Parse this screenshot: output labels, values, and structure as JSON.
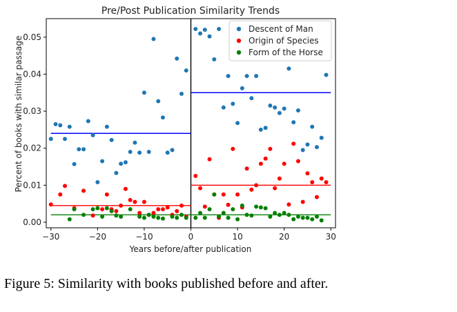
{
  "caption": "Figure 5: Similarity with books published before and after.",
  "chart_data": {
    "type": "scatter",
    "title": "Pre/Post Publication Similarity Trends",
    "xlabel": "Years before/after publication",
    "ylabel": "Percent of books with similar passage",
    "xlim": [
      -31,
      31
    ],
    "ylim": [
      -0.0015,
      0.055
    ],
    "xticks": [
      -30,
      -20,
      -10,
      0,
      10,
      20,
      30
    ],
    "xtick_labels": [
      "−30",
      "−20",
      "−10",
      "0",
      "10",
      "20",
      "30"
    ],
    "yticks": [
      0.0,
      0.01,
      0.02,
      0.03,
      0.04,
      0.05
    ],
    "ytick_labels": [
      "0.00",
      "0.01",
      "0.02",
      "0.03",
      "0.04",
      "0.05"
    ],
    "grid": false,
    "legend_position": "top-right",
    "vline_x": 0,
    "series": [
      {
        "name": "Descent of Man",
        "color": "#1f77b4",
        "x": [
          -30,
          -29,
          -28,
          -27,
          -26,
          -25,
          -24,
          -23,
          -22,
          -21,
          -20,
          -19,
          -18,
          -17,
          -16,
          -15,
          -14,
          -13,
          -12,
          -11,
          -10,
          -9,
          -8,
          -7,
          -6,
          -5,
          -4,
          -3,
          -2,
          -1,
          1,
          2,
          3,
          4,
          5,
          6,
          7,
          8,
          9,
          10,
          11,
          12,
          13,
          14,
          15,
          16,
          17,
          18,
          19,
          20,
          21,
          22,
          23,
          24,
          25,
          26,
          27,
          28,
          29
        ],
        "y": [
          0.0225,
          0.0265,
          0.0262,
          0.0225,
          0.0258,
          0.0157,
          0.0197,
          0.0197,
          0.0273,
          0.0235,
          0.0108,
          0.0165,
          0.0258,
          0.0222,
          0.0133,
          0.0158,
          0.0162,
          0.019,
          0.0215,
          0.0188,
          0.035,
          0.019,
          0.0495,
          0.0327,
          0.0283,
          0.0188,
          0.0195,
          0.0442,
          0.0347,
          0.041,
          0.0522,
          0.051,
          0.052,
          0.0502,
          0.044,
          0.0522,
          0.031,
          0.0395,
          0.032,
          0.0268,
          0.0362,
          0.0395,
          0.0335,
          0.0395,
          0.025,
          0.0255,
          0.0315,
          0.031,
          0.0295,
          0.0307,
          0.0415,
          0.027,
          0.0302,
          0.0195,
          0.021,
          0.0258,
          0.0203,
          0.0228,
          0.0398
        ],
        "trend": {
          "from": -30,
          "to": 0,
          "value": 0.024,
          "color": "#0000ff"
        },
        "trend_post": {
          "from": 0,
          "to": 30,
          "value": 0.035,
          "color": "#0000ff"
        }
      },
      {
        "name": "Origin of Species",
        "color": "#ff0000",
        "x": [
          -30,
          -28,
          -27,
          -25,
          -23,
          -21,
          -19,
          -18,
          -17,
          -16,
          -15,
          -14,
          -13,
          -12,
          -11,
          -10,
          -9,
          -8,
          -7,
          -6,
          -5,
          -4,
          -3,
          -2,
          -1,
          1,
          2,
          3,
          4,
          5,
          6,
          7,
          8,
          9,
          10,
          11,
          12,
          13,
          14,
          15,
          16,
          17,
          18,
          19,
          20,
          21,
          22,
          23,
          24,
          25,
          26,
          27,
          28,
          29
        ],
        "y": [
          0.0048,
          0.0075,
          0.0098,
          0.0038,
          0.0085,
          0.0018,
          0.0035,
          0.0075,
          0.0035,
          0.003,
          0.0045,
          0.009,
          0.006,
          0.0055,
          0.0025,
          0.0055,
          0.002,
          0.0025,
          0.0035,
          0.0035,
          0.004,
          0.002,
          0.003,
          0.0045,
          0.0015,
          0.0125,
          0.0092,
          0.0042,
          0.017,
          0.0075,
          0.0012,
          0.0075,
          0.0047,
          0.0198,
          0.0075,
          0.004,
          0.0145,
          0.0088,
          0.01,
          0.0158,
          0.0172,
          0.0198,
          0.0092,
          0.0118,
          0.0158,
          0.0048,
          0.0212,
          0.0165,
          0.0055,
          0.0132,
          0.0108,
          0.0068,
          0.0118,
          0.0108
        ],
        "trend": {
          "from": -30,
          "to": 0,
          "value": 0.0045,
          "color": "#ff0000"
        },
        "trend_post": {
          "from": 0,
          "to": 30,
          "value": 0.01,
          "color": "#ff0000"
        }
      },
      {
        "name": "Form of the Horse",
        "color": "#008000",
        "x": [
          -26,
          -25,
          -23,
          -21,
          -20,
          -19,
          -18,
          -17,
          -16,
          -15,
          -13,
          -11,
          -10,
          -9,
          -8,
          -7,
          -6,
          -4,
          -3,
          -2,
          -1,
          1,
          2,
          3,
          4,
          5,
          6,
          7,
          8,
          9,
          10,
          11,
          12,
          13,
          14,
          15,
          16,
          17,
          18,
          19,
          20,
          21,
          22,
          23,
          24,
          25,
          26,
          27,
          28
        ],
        "y": [
          0.0008,
          0.0035,
          0.002,
          0.0035,
          0.0038,
          0.0015,
          0.0038,
          0.003,
          0.0018,
          0.0015,
          0.0035,
          0.0015,
          0.0012,
          0.002,
          0.0015,
          0.0012,
          0.001,
          0.0015,
          0.0012,
          0.002,
          0.0012,
          0.0012,
          0.0025,
          0.0012,
          0.0035,
          0.0075,
          0.0015,
          0.0025,
          0.0012,
          0.0035,
          0.0008,
          0.0045,
          0.002,
          0.0018,
          0.0042,
          0.004,
          0.0038,
          0.0015,
          0.0025,
          0.002,
          0.0025,
          0.002,
          0.0008,
          0.0015,
          0.0012,
          0.0012,
          0.0008,
          0.0015,
          0.0005
        ],
        "trend": {
          "from": -30,
          "to": 0,
          "value": 0.002,
          "color": "#008000"
        },
        "trend_post": {
          "from": 0,
          "to": 30,
          "value": 0.002,
          "color": "#008000"
        }
      }
    ]
  }
}
